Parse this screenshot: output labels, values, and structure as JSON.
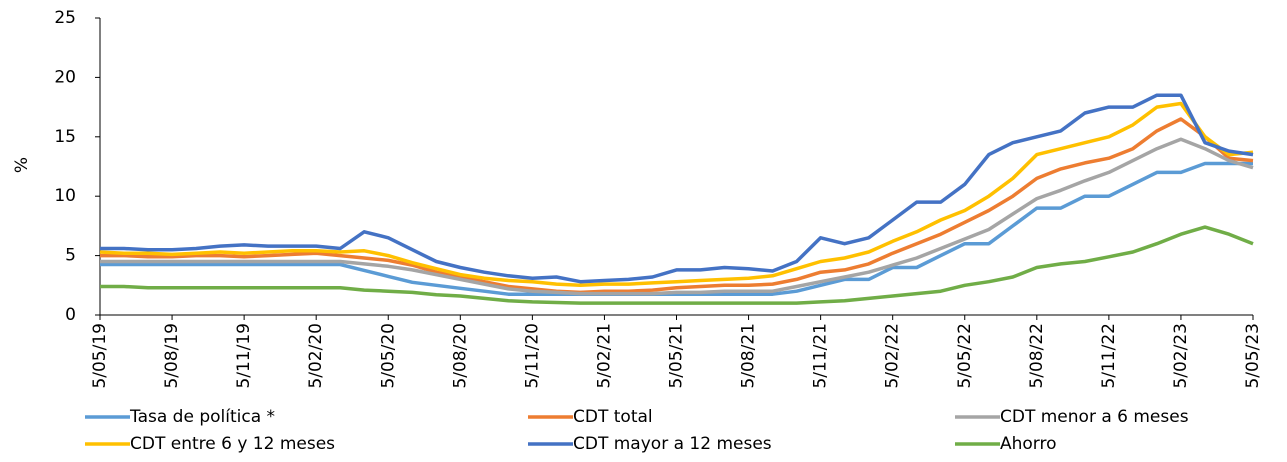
{
  "chart_data": {
    "type": "line",
    "y_label": "%",
    "categories": [
      "5/05/19",
      null,
      null,
      "5/08/19",
      null,
      null,
      "5/11/19",
      null,
      null,
      "5/02/20",
      null,
      null,
      "5/05/20",
      null,
      null,
      "5/08/20",
      null,
      null,
      "5/11/20",
      null,
      null,
      "5/02/21",
      null,
      null,
      "5/05/21",
      null,
      null,
      "5/08/21",
      null,
      null,
      "5/11/21",
      null,
      null,
      "5/02/22",
      null,
      null,
      "5/05/22",
      null,
      null,
      "5/08/22",
      null,
      null,
      "5/11/22",
      null,
      null,
      "5/02/23",
      null,
      null,
      "5/05/23"
    ],
    "series": [
      {
        "name": "Tasa de política *",
        "color": "#5b9bd5",
        "values": [
          4.25,
          4.25,
          4.25,
          4.25,
          4.25,
          4.25,
          4.25,
          4.25,
          4.25,
          4.25,
          4.25,
          3.75,
          3.25,
          2.75,
          2.5,
          2.25,
          2.0,
          1.75,
          1.75,
          1.75,
          1.75,
          1.75,
          1.75,
          1.75,
          1.75,
          1.75,
          1.75,
          1.75,
          1.75,
          2.0,
          2.5,
          3.0,
          3.0,
          4.0,
          4.0,
          5.0,
          6.0,
          6.0,
          7.5,
          9.0,
          9.0,
          10.0,
          10.0,
          11.0,
          12.0,
          12.0,
          12.75,
          12.75,
          12.75
        ]
      },
      {
        "name": "CDT total",
        "color": "#ed7d31",
        "values": [
          5.0,
          5.0,
          4.9,
          4.9,
          5.0,
          5.0,
          4.9,
          5.0,
          5.1,
          5.2,
          5.0,
          4.8,
          4.6,
          4.2,
          3.6,
          3.2,
          2.8,
          2.4,
          2.2,
          2.0,
          1.9,
          2.0,
          2.0,
          2.1,
          2.3,
          2.4,
          2.5,
          2.5,
          2.6,
          3.0,
          3.6,
          3.8,
          4.3,
          5.2,
          6.0,
          6.8,
          7.8,
          8.8,
          10.0,
          11.5,
          12.3,
          12.8,
          13.2,
          14.0,
          15.5,
          16.5,
          15.0,
          13.2,
          13.0
        ]
      },
      {
        "name": "CDT menor a 6 meses",
        "color": "#a5a5a5",
        "values": [
          4.5,
          4.5,
          4.5,
          4.5,
          4.5,
          4.5,
          4.5,
          4.5,
          4.5,
          4.5,
          4.5,
          4.3,
          4.1,
          3.8,
          3.4,
          3.0,
          2.6,
          2.2,
          2.0,
          1.9,
          1.8,
          1.8,
          1.8,
          1.8,
          1.9,
          1.9,
          2.0,
          2.0,
          2.0,
          2.4,
          2.8,
          3.2,
          3.6,
          4.2,
          4.8,
          5.6,
          6.4,
          7.2,
          8.5,
          9.8,
          10.5,
          11.3,
          12.0,
          13.0,
          14.0,
          14.8,
          14.0,
          13.0,
          12.4
        ]
      },
      {
        "name": "CDT entre 6 y 12 meses",
        "color": "#ffc000",
        "values": [
          5.3,
          5.2,
          5.2,
          5.1,
          5.2,
          5.3,
          5.2,
          5.3,
          5.4,
          5.4,
          5.3,
          5.4,
          5.0,
          4.4,
          3.9,
          3.4,
          3.1,
          2.9,
          2.8,
          2.6,
          2.5,
          2.6,
          2.6,
          2.7,
          2.8,
          2.9,
          3.0,
          3.1,
          3.3,
          3.9,
          4.5,
          4.8,
          5.3,
          6.2,
          7.0,
          8.0,
          8.8,
          10.0,
          11.5,
          13.5,
          14.0,
          14.5,
          15.0,
          16.0,
          17.5,
          17.8,
          15.0,
          13.5,
          13.7
        ]
      },
      {
        "name": "CDT mayor a 12 meses",
        "color": "#4472c4",
        "values": [
          5.6,
          5.6,
          5.5,
          5.5,
          5.6,
          5.8,
          5.9,
          5.8,
          5.8,
          5.8,
          5.6,
          7.0,
          6.5,
          5.5,
          4.5,
          4.0,
          3.6,
          3.3,
          3.1,
          3.2,
          2.8,
          2.9,
          3.0,
          3.2,
          3.8,
          3.8,
          4.0,
          3.9,
          3.7,
          4.5,
          6.5,
          6.0,
          6.5,
          8.0,
          9.5,
          9.5,
          11.0,
          13.5,
          14.5,
          15.0,
          15.5,
          17.0,
          17.5,
          17.5,
          18.5,
          18.5,
          14.5,
          13.8,
          13.5
        ]
      },
      {
        "name": "Ahorro",
        "color": "#70ad47",
        "values": [
          2.4,
          2.4,
          2.3,
          2.3,
          2.3,
          2.3,
          2.3,
          2.3,
          2.3,
          2.3,
          2.3,
          2.1,
          2.0,
          1.9,
          1.7,
          1.6,
          1.4,
          1.2,
          1.1,
          1.05,
          1.0,
          1.0,
          1.0,
          1.0,
          1.0,
          1.0,
          1.0,
          1.0,
          1.0,
          1.0,
          1.1,
          1.2,
          1.4,
          1.6,
          1.8,
          2.0,
          2.5,
          2.8,
          3.2,
          4.0,
          4.3,
          4.5,
          4.9,
          5.3,
          6.0,
          6.8,
          7.4,
          6.8,
          6.0
        ]
      }
    ],
    "ylim": [
      0,
      25
    ],
    "yticks": [
      0,
      5,
      10,
      15,
      20,
      25
    ],
    "legend": "bottom"
  }
}
